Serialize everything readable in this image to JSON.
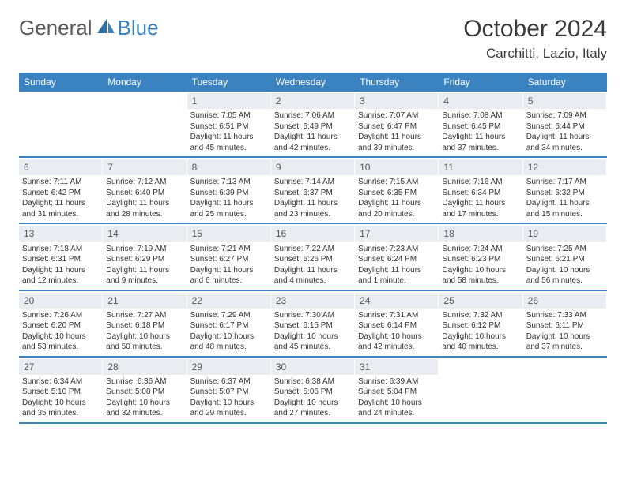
{
  "logo": {
    "left": "General",
    "right": "Blue"
  },
  "header": {
    "title": "October 2024",
    "location": "Carchitti, Lazio, Italy"
  },
  "colors": {
    "accent": "#3b83c0",
    "daynum_bg": "#e9edf1",
    "text": "#333333",
    "bg": "#ffffff"
  },
  "dow": [
    "Sunday",
    "Monday",
    "Tuesday",
    "Wednesday",
    "Thursday",
    "Friday",
    "Saturday"
  ],
  "weeks": [
    [
      {
        "num": "",
        "sun": "",
        "set": "",
        "dl1": "",
        "dl2": ""
      },
      {
        "num": "",
        "sun": "",
        "set": "",
        "dl1": "",
        "dl2": ""
      },
      {
        "num": "1",
        "sun": "Sunrise: 7:05 AM",
        "set": "Sunset: 6:51 PM",
        "dl1": "Daylight: 11 hours",
        "dl2": "and 45 minutes."
      },
      {
        "num": "2",
        "sun": "Sunrise: 7:06 AM",
        "set": "Sunset: 6:49 PM",
        "dl1": "Daylight: 11 hours",
        "dl2": "and 42 minutes."
      },
      {
        "num": "3",
        "sun": "Sunrise: 7:07 AM",
        "set": "Sunset: 6:47 PM",
        "dl1": "Daylight: 11 hours",
        "dl2": "and 39 minutes."
      },
      {
        "num": "4",
        "sun": "Sunrise: 7:08 AM",
        "set": "Sunset: 6:45 PM",
        "dl1": "Daylight: 11 hours",
        "dl2": "and 37 minutes."
      },
      {
        "num": "5",
        "sun": "Sunrise: 7:09 AM",
        "set": "Sunset: 6:44 PM",
        "dl1": "Daylight: 11 hours",
        "dl2": "and 34 minutes."
      }
    ],
    [
      {
        "num": "6",
        "sun": "Sunrise: 7:11 AM",
        "set": "Sunset: 6:42 PM",
        "dl1": "Daylight: 11 hours",
        "dl2": "and 31 minutes."
      },
      {
        "num": "7",
        "sun": "Sunrise: 7:12 AM",
        "set": "Sunset: 6:40 PM",
        "dl1": "Daylight: 11 hours",
        "dl2": "and 28 minutes."
      },
      {
        "num": "8",
        "sun": "Sunrise: 7:13 AM",
        "set": "Sunset: 6:39 PM",
        "dl1": "Daylight: 11 hours",
        "dl2": "and 25 minutes."
      },
      {
        "num": "9",
        "sun": "Sunrise: 7:14 AM",
        "set": "Sunset: 6:37 PM",
        "dl1": "Daylight: 11 hours",
        "dl2": "and 23 minutes."
      },
      {
        "num": "10",
        "sun": "Sunrise: 7:15 AM",
        "set": "Sunset: 6:35 PM",
        "dl1": "Daylight: 11 hours",
        "dl2": "and 20 minutes."
      },
      {
        "num": "11",
        "sun": "Sunrise: 7:16 AM",
        "set": "Sunset: 6:34 PM",
        "dl1": "Daylight: 11 hours",
        "dl2": "and 17 minutes."
      },
      {
        "num": "12",
        "sun": "Sunrise: 7:17 AM",
        "set": "Sunset: 6:32 PM",
        "dl1": "Daylight: 11 hours",
        "dl2": "and 15 minutes."
      }
    ],
    [
      {
        "num": "13",
        "sun": "Sunrise: 7:18 AM",
        "set": "Sunset: 6:31 PM",
        "dl1": "Daylight: 11 hours",
        "dl2": "and 12 minutes."
      },
      {
        "num": "14",
        "sun": "Sunrise: 7:19 AM",
        "set": "Sunset: 6:29 PM",
        "dl1": "Daylight: 11 hours",
        "dl2": "and 9 minutes."
      },
      {
        "num": "15",
        "sun": "Sunrise: 7:21 AM",
        "set": "Sunset: 6:27 PM",
        "dl1": "Daylight: 11 hours",
        "dl2": "and 6 minutes."
      },
      {
        "num": "16",
        "sun": "Sunrise: 7:22 AM",
        "set": "Sunset: 6:26 PM",
        "dl1": "Daylight: 11 hours",
        "dl2": "and 4 minutes."
      },
      {
        "num": "17",
        "sun": "Sunrise: 7:23 AM",
        "set": "Sunset: 6:24 PM",
        "dl1": "Daylight: 11 hours",
        "dl2": "and 1 minute."
      },
      {
        "num": "18",
        "sun": "Sunrise: 7:24 AM",
        "set": "Sunset: 6:23 PM",
        "dl1": "Daylight: 10 hours",
        "dl2": "and 58 minutes."
      },
      {
        "num": "19",
        "sun": "Sunrise: 7:25 AM",
        "set": "Sunset: 6:21 PM",
        "dl1": "Daylight: 10 hours",
        "dl2": "and 56 minutes."
      }
    ],
    [
      {
        "num": "20",
        "sun": "Sunrise: 7:26 AM",
        "set": "Sunset: 6:20 PM",
        "dl1": "Daylight: 10 hours",
        "dl2": "and 53 minutes."
      },
      {
        "num": "21",
        "sun": "Sunrise: 7:27 AM",
        "set": "Sunset: 6:18 PM",
        "dl1": "Daylight: 10 hours",
        "dl2": "and 50 minutes."
      },
      {
        "num": "22",
        "sun": "Sunrise: 7:29 AM",
        "set": "Sunset: 6:17 PM",
        "dl1": "Daylight: 10 hours",
        "dl2": "and 48 minutes."
      },
      {
        "num": "23",
        "sun": "Sunrise: 7:30 AM",
        "set": "Sunset: 6:15 PM",
        "dl1": "Daylight: 10 hours",
        "dl2": "and 45 minutes."
      },
      {
        "num": "24",
        "sun": "Sunrise: 7:31 AM",
        "set": "Sunset: 6:14 PM",
        "dl1": "Daylight: 10 hours",
        "dl2": "and 42 minutes."
      },
      {
        "num": "25",
        "sun": "Sunrise: 7:32 AM",
        "set": "Sunset: 6:12 PM",
        "dl1": "Daylight: 10 hours",
        "dl2": "and 40 minutes."
      },
      {
        "num": "26",
        "sun": "Sunrise: 7:33 AM",
        "set": "Sunset: 6:11 PM",
        "dl1": "Daylight: 10 hours",
        "dl2": "and 37 minutes."
      }
    ],
    [
      {
        "num": "27",
        "sun": "Sunrise: 6:34 AM",
        "set": "Sunset: 5:10 PM",
        "dl1": "Daylight: 10 hours",
        "dl2": "and 35 minutes."
      },
      {
        "num": "28",
        "sun": "Sunrise: 6:36 AM",
        "set": "Sunset: 5:08 PM",
        "dl1": "Daylight: 10 hours",
        "dl2": "and 32 minutes."
      },
      {
        "num": "29",
        "sun": "Sunrise: 6:37 AM",
        "set": "Sunset: 5:07 PM",
        "dl1": "Daylight: 10 hours",
        "dl2": "and 29 minutes."
      },
      {
        "num": "30",
        "sun": "Sunrise: 6:38 AM",
        "set": "Sunset: 5:06 PM",
        "dl1": "Daylight: 10 hours",
        "dl2": "and 27 minutes."
      },
      {
        "num": "31",
        "sun": "Sunrise: 6:39 AM",
        "set": "Sunset: 5:04 PM",
        "dl1": "Daylight: 10 hours",
        "dl2": "and 24 minutes."
      },
      {
        "num": "",
        "sun": "",
        "set": "",
        "dl1": "",
        "dl2": ""
      },
      {
        "num": "",
        "sun": "",
        "set": "",
        "dl1": "",
        "dl2": ""
      }
    ]
  ]
}
